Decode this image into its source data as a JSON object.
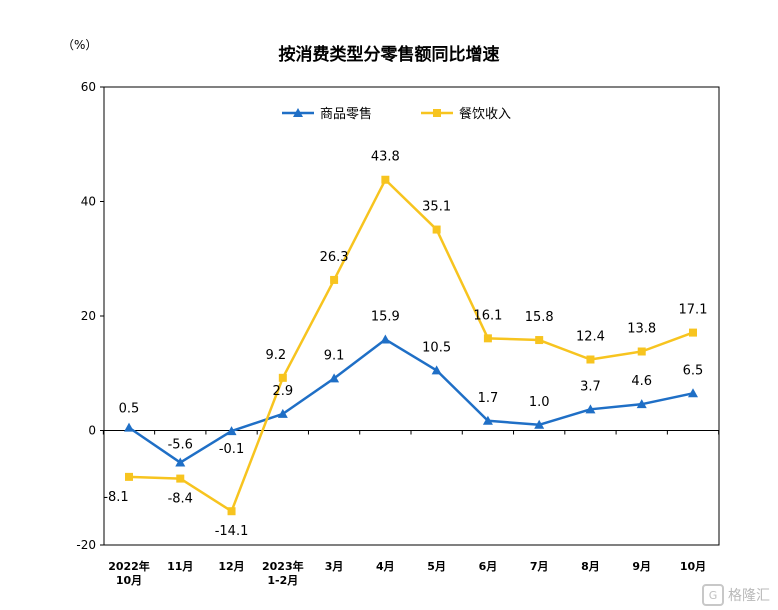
{
  "watermark": {
    "logo": "G",
    "text": "格隆汇"
  },
  "chart_data": {
    "type": "line",
    "title": "按消费类型分零售额同比增速",
    "unit_label": "（%）",
    "xlabel": "",
    "ylabel": "",
    "ylim": [
      -20,
      60
    ],
    "yticks": [
      -20,
      0,
      20,
      40,
      60
    ],
    "grid": false,
    "legend_position": "top-center",
    "categories": [
      [
        "2022年",
        "10月"
      ],
      [
        "11月"
      ],
      [
        "12月"
      ],
      [
        "2023年",
        "1-2月"
      ],
      [
        "3月"
      ],
      [
        "4月"
      ],
      [
        "5月"
      ],
      [
        "6月"
      ],
      [
        "7月"
      ],
      [
        "8月"
      ],
      [
        "9月"
      ],
      [
        "10月"
      ]
    ],
    "series": [
      {
        "name": "商品零售",
        "color": "#1f6fc6",
        "marker": "triangle",
        "values": [
          0.5,
          -5.6,
          -0.1,
          2.9,
          9.1,
          15.9,
          10.5,
          1.7,
          1.0,
          3.7,
          4.6,
          6.5
        ],
        "labels": [
          "0.5",
          "-5.6",
          "-0.1",
          "2.9",
          "9.1",
          "15.9",
          "10.5",
          "1.7",
          "1.0",
          "3.7",
          "4.6",
          "6.5"
        ]
      },
      {
        "name": "餐饮收入",
        "color": "#f7c41f",
        "marker": "square",
        "values": [
          -8.1,
          -8.4,
          -14.1,
          9.2,
          26.3,
          43.8,
          35.1,
          16.1,
          15.8,
          12.4,
          13.8,
          17.1
        ],
        "labels": [
          "-8.1",
          "-8.4",
          "-14.1",
          "9.2",
          "26.3",
          "43.8",
          "35.1",
          "16.1",
          "15.8",
          "12.4",
          "13.8",
          "17.1"
        ]
      }
    ]
  }
}
